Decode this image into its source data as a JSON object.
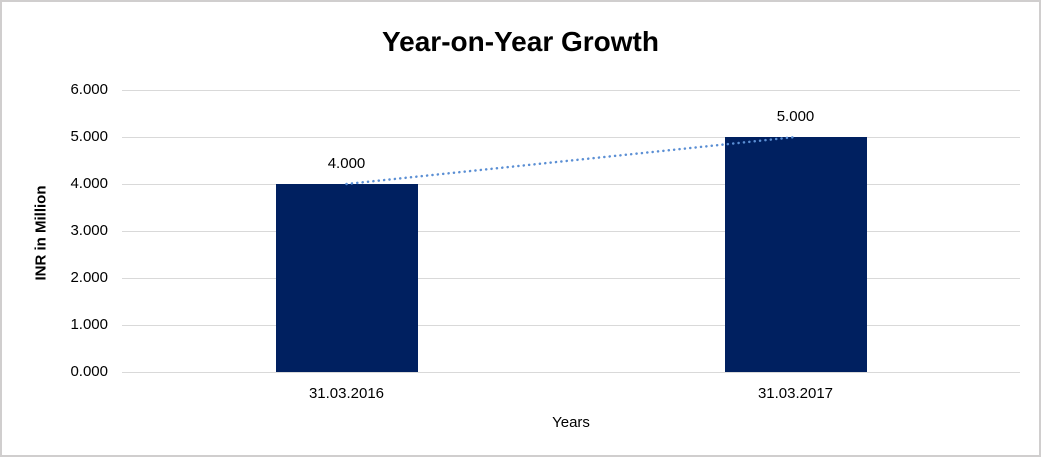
{
  "chart_data": {
    "type": "bar",
    "title": "Year-on-Year Growth",
    "categories": [
      "31.03.2016",
      "31.03.2017"
    ],
    "values": [
      4000,
      5000
    ],
    "value_labels": [
      "4.000",
      "5.000"
    ],
    "xlabel": "Years",
    "ylabel": "INR in Million",
    "ylim": [
      0,
      6000
    ],
    "ytick_labels": [
      "0.000",
      "1.000",
      "2.000",
      "3.000",
      "4.000",
      "5.000",
      "6.000"
    ],
    "grid": true,
    "legend": false,
    "trendline": {
      "style": "dotted",
      "connects_value_labels": [
        "4.000",
        "5.000"
      ]
    },
    "colors": {
      "bar": "#002060",
      "trendline": "#5b8fd4",
      "gridline": "#d9d9d9",
      "text": "#000000",
      "frame_border": "#d0cece",
      "background": "#ffffff"
    }
  }
}
